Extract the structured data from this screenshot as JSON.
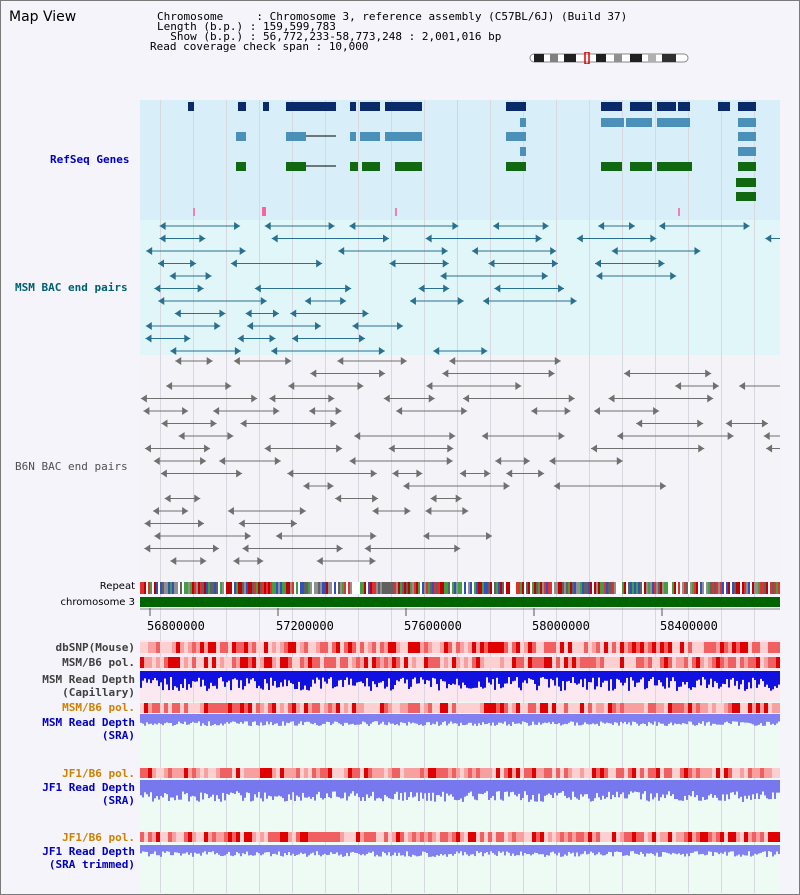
{
  "view": {
    "title": "Map View",
    "chromosome_label": "Chromosome     : ",
    "chromosome_value": "Chromosome 3, reference assembly (C57BL/6J) (Build 37)",
    "length_label": "Length (b.p.) : ",
    "length_value": "159,599,783",
    "show_label": "  Show (b.p.) : ",
    "show_value": "56,772,233-58,773,248 : 2,001,016 bp",
    "coverage_label": "Read coverage check span : ",
    "coverage_value": "10,000"
  },
  "tracks": {
    "refseq": "RefSeq Genes",
    "msm_bac": "MSM BAC end pairs",
    "b6n_bac": "B6N BAC end pairs",
    "repeat": "Repeat",
    "chromosome": "chromosome 3",
    "dbsnp": "dbSNP(Mouse)",
    "msm_b6_pol": "MSM/B6 pol.",
    "msm_read_depth_cap_1": "MSM Read Depth",
    "msm_read_depth_cap_2": "(Capillary)",
    "msm_b6_pol_2": "MSM/B6 pol.",
    "msm_read_depth_sra_1": "MSM Read Depth",
    "msm_read_depth_sra_2": "(SRA)",
    "jf1_b6_pol": "JF1/B6 pol.",
    "jf1_read_depth_sra_1": "JF1 Read Depth",
    "jf1_read_depth_sra_2": "(SRA)",
    "jf1_b6_pol_2": "JF1/B6 pol.",
    "jf1_read_depth_trim_1": "JF1 Read Depth",
    "jf1_read_depth_trim_2": "(SRA trimmed)"
  },
  "axis": {
    "ticks": [
      "56800000",
      "57200000",
      "57600000",
      "58000000",
      "58400000"
    ]
  },
  "colors": {
    "refseq_label": "#0000c0",
    "msm_label": "#006070",
    "b6n_label": "#505050",
    "orange_label": "#d08000",
    "blue_label": "#0000c0",
    "chromosome_bar": "#006400"
  }
}
